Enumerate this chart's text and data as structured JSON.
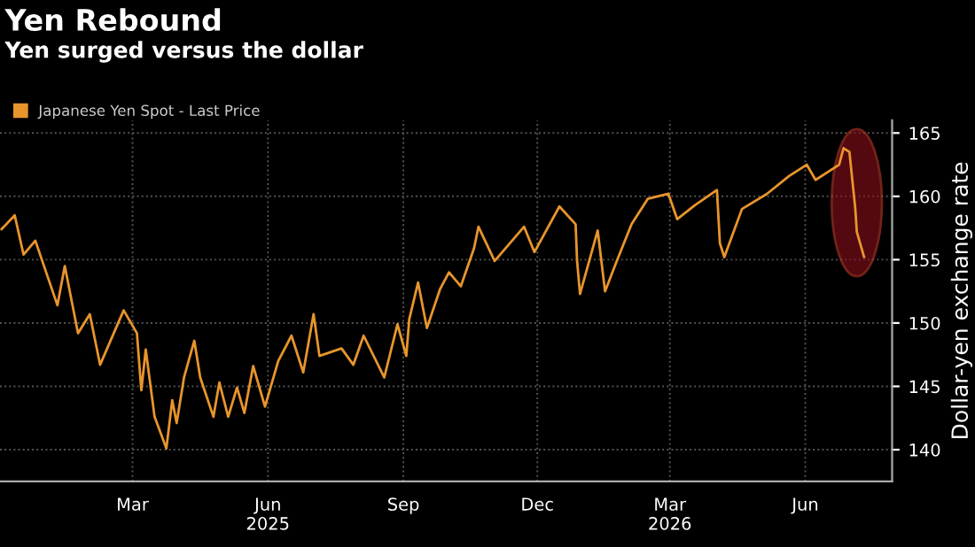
{
  "chart_data": {
    "type": "line",
    "title": "Yen Rebound",
    "subtitle": "Yen surged versus the dollar",
    "ylabel": "Dollar-yen exchange rate",
    "x": [
      "2024-12-02",
      "2024-12-11",
      "2024-12-17",
      "2024-12-25",
      "2025-01-09",
      "2025-01-14",
      "2025-01-23",
      "2025-01-31",
      "2025-02-07",
      "2025-02-23",
      "2025-03-04",
      "2025-03-07",
      "2025-03-10",
      "2025-03-16",
      "2025-03-24",
      "2025-03-28",
      "2025-03-31",
      "2025-04-05",
      "2025-04-12",
      "2025-04-16",
      "2025-04-25",
      "2025-04-29",
      "2025-05-05",
      "2025-05-11",
      "2025-05-16",
      "2025-05-22",
      "2025-05-30",
      "2025-06-08",
      "2025-06-17",
      "2025-06-25",
      "2025-07-02",
      "2025-07-06",
      "2025-07-21",
      "2025-07-29",
      "2025-08-05",
      "2025-08-19",
      "2025-08-28",
      "2025-09-03",
      "2025-09-05",
      "2025-09-11",
      "2025-09-17",
      "2025-09-26",
      "2025-10-02",
      "2025-10-10",
      "2025-10-19",
      "2025-10-22",
      "2025-11-02",
      "2025-11-22",
      "2025-11-29",
      "2025-12-16",
      "2025-12-27",
      "2025-12-28",
      "2025-12-30",
      "2026-01-11",
      "2026-01-16",
      "2026-01-24",
      "2026-02-03",
      "2026-02-14",
      "2026-02-28",
      "2026-03-06",
      "2026-03-18",
      "2026-04-02",
      "2026-04-04",
      "2026-04-07",
      "2026-04-19",
      "2026-05-06",
      "2026-05-21",
      "2026-06-02",
      "2026-06-08",
      "2026-06-24",
      "2026-06-27",
      "2026-07-01",
      "2026-07-05",
      "2026-07-06",
      "2026-07-11"
    ],
    "series": [
      {
        "name": "Japanese Yen Spot - Last Price",
        "color": "#e8952c",
        "values": [
          157.4,
          158.5,
          155.4,
          156.5,
          151.4,
          154.5,
          149.2,
          150.7,
          146.7,
          151,
          149.2,
          144.7,
          147.9,
          142.6,
          140.1,
          143.9,
          142.1,
          145.7,
          148.6,
          145.7,
          142.6,
          145.3,
          142.6,
          144.9,
          142.9,
          146.6,
          143.4,
          147,
          149,
          146.1,
          150.7,
          147.4,
          148,
          146.7,
          149,
          145.7,
          149.9,
          147.4,
          150.3,
          153.2,
          149.6,
          152.7,
          154,
          152.9,
          155.9,
          157.6,
          154.9,
          157.6,
          155.6,
          159.2,
          157.8,
          154.9,
          152.3,
          157.3,
          152.5,
          154.9,
          157.8,
          159.8,
          160.2,
          158.2,
          159.3,
          160.5,
          156.3,
          155.2,
          159,
          160.2,
          161.6,
          162.5,
          161.3,
          162.5,
          163.8,
          163.5,
          159,
          157.2,
          155.2
        ]
      }
    ],
    "xlim": [
      "2024-12-01",
      "2026-07-30"
    ],
    "xticks": [
      {
        "value": "2025-03-01",
        "label": "Mar"
      },
      {
        "value": "2025-06-01",
        "label": "Jun\n2025"
      },
      {
        "value": "2025-09-01",
        "label": "Sep"
      },
      {
        "value": "2025-12-01",
        "label": "Dec"
      },
      {
        "value": "2026-03-01",
        "label": "Mar\n2026"
      },
      {
        "value": "2026-06-01",
        "label": "Jun"
      }
    ],
    "ylim": [
      137.5,
      166
    ],
    "yticks": [
      140,
      145,
      150,
      155,
      160,
      165
    ],
    "grid": true,
    "legend": "top left",
    "line_style": "solid",
    "marker": "none"
  }
}
